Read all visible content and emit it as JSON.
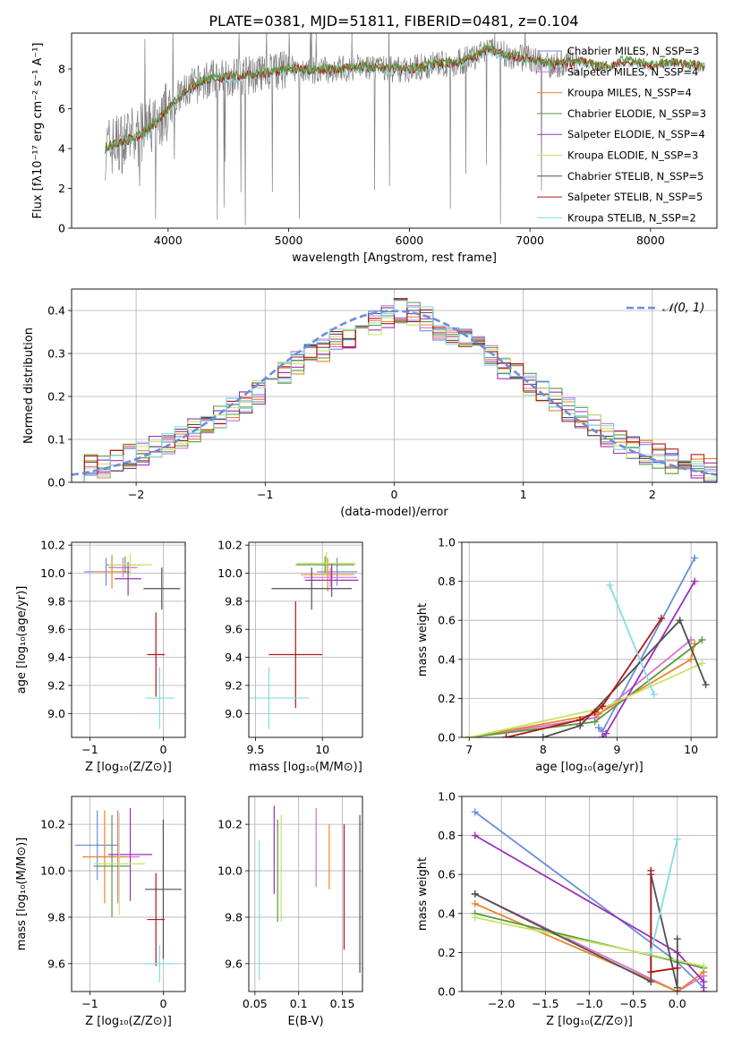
{
  "title": "PLATE=0381, MJD=51811, FIBERID=0481, z=0.104",
  "colors": [
    "#6a8fd8",
    "#d96fd0",
    "#e8862c",
    "#5b9a3c",
    "#9b30b8",
    "#c8e36a",
    "#505050",
    "#b01818",
    "#86dbe0"
  ],
  "chart_data": [
    {
      "id": "spectrum",
      "type": "line",
      "title": "PLATE=0381, MJD=51811, FIBERID=0481, z=0.104",
      "xlabel": "wavelength [Angstrom, rest frame]",
      "ylabel": "Flux [fλ10⁻¹⁷ erg cm⁻² s⁻¹ A⁻¹]",
      "xlim": [
        3200,
        8550
      ],
      "ylim": [
        0,
        9.8
      ],
      "xticks": [
        4000,
        5000,
        6000,
        7000,
        8000
      ],
      "yticks": [
        0,
        2,
        4,
        6,
        8
      ],
      "grid": false,
      "legend_position": "top-right",
      "legend": [
        "Chabrier MILES, N_SSP=3",
        "Salpeter MILES, N_SSP=4",
        "Kroupa MILES, N_SSP=4",
        "Chabrier ELODIE, N_SSP=3",
        "Salpeter ELODIE, N_SSP=4",
        "Kroupa ELODIE, N_SSP=3",
        "Chabrier STELIB, N_SSP=5",
        "Salpeter STELIB, N_SSP=5",
        "Kroupa STELIB, N_SSP=2"
      ],
      "continuum": {
        "x": [
          3480,
          3550,
          3650,
          3750,
          3850,
          3950,
          4050,
          4150,
          4300,
          4500,
          4700,
          4850,
          5000,
          5200,
          5400,
          5600,
          5800,
          6000,
          6200,
          6400,
          6550,
          6650,
          6800,
          7000,
          7200,
          7400,
          7600,
          7800,
          8000,
          8200,
          8350,
          8450
        ],
        "y": [
          4.0,
          4.2,
          4.4,
          4.6,
          5.0,
          5.6,
          6.3,
          6.9,
          7.4,
          7.6,
          7.7,
          7.8,
          8.0,
          7.9,
          8.0,
          8.1,
          8.0,
          8.0,
          8.2,
          8.3,
          8.6,
          9.0,
          8.7,
          8.5,
          8.2,
          8.4,
          8.1,
          8.4,
          8.2,
          8.3,
          8.2,
          8.1
        ]
      }
    },
    {
      "id": "residuals",
      "type": "bar",
      "xlabel": "(data-model)/error",
      "ylabel": "Normed distribution",
      "xlim": [
        -2.5,
        2.5
      ],
      "ylim": [
        0,
        0.45
      ],
      "xticks": [
        -2,
        -1,
        0,
        1,
        2
      ],
      "yticks": [
        0.0,
        0.1,
        0.2,
        0.3,
        0.4
      ],
      "grid": true,
      "legend_position": "top-right",
      "legend": [
        "𝒩(0, 1)"
      ],
      "bin_width": 0.1,
      "bin_start": -2.5,
      "values": [
        0.03,
        0.035,
        0.04,
        0.05,
        0.06,
        0.07,
        0.08,
        0.09,
        0.1,
        0.12,
        0.13,
        0.15,
        0.17,
        0.19,
        0.21,
        0.24,
        0.26,
        0.28,
        0.3,
        0.31,
        0.33,
        0.34,
        0.36,
        0.37,
        0.39,
        0.4,
        0.39,
        0.38,
        0.36,
        0.34,
        0.33,
        0.31,
        0.29,
        0.27,
        0.25,
        0.23,
        0.21,
        0.19,
        0.17,
        0.15,
        0.13,
        0.11,
        0.09,
        0.08,
        0.07,
        0.06,
        0.05,
        0.04,
        0.035,
        0.03
      ]
    },
    {
      "id": "age_vs_Z",
      "type": "scatter",
      "xlabel": "Z [log₁₀(Z/Z⊙)]",
      "ylabel": "age  [log₁₀(age/yr)]",
      "xlim": [
        -1.25,
        0.3
      ],
      "ylim": [
        8.83,
        10.22
      ],
      "xticks": [
        -1,
        0
      ],
      "yticks": [
        9.0,
        9.2,
        9.4,
        9.6,
        9.8,
        10.0,
        10.2
      ],
      "grid": true,
      "points": [
        {
          "x": -0.78,
          "y": 10.01,
          "xerr": 0.3,
          "yerr": 0.1
        },
        {
          "x": -0.55,
          "y": 10.04,
          "xerr": 0.2,
          "yerr": 0.07
        },
        {
          "x": -0.7,
          "y": 10.01,
          "xerr": 0.25,
          "yerr": 0.12
        },
        {
          "x": -0.52,
          "y": 10.06,
          "xerr": 0.25,
          "yerr": 0.06
        },
        {
          "x": -0.48,
          "y": 9.96,
          "xerr": 0.18,
          "yerr": 0.12
        },
        {
          "x": -0.45,
          "y": 10.06,
          "xerr": 0.3,
          "yerr": 0.08
        },
        {
          "x": -0.02,
          "y": 9.89,
          "xerr": 0.25,
          "yerr": 0.15
        },
        {
          "x": -0.1,
          "y": 9.42,
          "xerr": 0.12,
          "yerr": 0.3
        },
        {
          "x": -0.05,
          "y": 9.11,
          "xerr": 0.2,
          "yerr": 0.22
        }
      ]
    },
    {
      "id": "age_vs_mass",
      "type": "scatter",
      "xlabel": "mass [log₁₀(M/M⊙)]",
      "ylabel": "",
      "xlim": [
        9.45,
        10.3
      ],
      "ylim": [
        8.83,
        10.22
      ],
      "xticks": [
        9.5,
        10.0
      ],
      "yticks": [
        9.0,
        9.2,
        9.4,
        9.6,
        9.8,
        10.0,
        10.2
      ],
      "grid": true,
      "points": [
        {
          "x": 10.11,
          "y": 10.01,
          "xerr": 0.15,
          "yerr": 0.1
        },
        {
          "x": 10.06,
          "y": 9.97,
          "xerr": 0.2,
          "yerr": 0.07
        },
        {
          "x": 10.04,
          "y": 9.99,
          "xerr": 0.2,
          "yerr": 0.12
        },
        {
          "x": 10.02,
          "y": 10.06,
          "xerr": 0.22,
          "yerr": 0.06
        },
        {
          "x": 10.07,
          "y": 9.95,
          "xerr": 0.2,
          "yerr": 0.12
        },
        {
          "x": 10.03,
          "y": 10.07,
          "xerr": 0.22,
          "yerr": 0.08
        },
        {
          "x": 9.92,
          "y": 9.89,
          "xerr": 0.3,
          "yerr": 0.15
        },
        {
          "x": 9.8,
          "y": 9.42,
          "xerr": 0.2,
          "yerr": 0.38
        },
        {
          "x": 9.6,
          "y": 9.11,
          "xerr": 0.3,
          "yerr": 0.22
        }
      ]
    },
    {
      "id": "weight_vs_age",
      "type": "line",
      "xlabel": "age  [log₁₀(age/yr)]",
      "ylabel": "mass weight",
      "xlim": [
        6.9,
        10.35
      ],
      "ylim": [
        0,
        1.0
      ],
      "xticks": [
        7,
        8,
        9,
        10
      ],
      "yticks": [
        0.0,
        0.2,
        0.4,
        0.6,
        0.8,
        1.0
      ],
      "grid": true,
      "series": [
        {
          "x": [
            8.75,
            8.8,
            10.05
          ],
          "y": [
            0.05,
            0.03,
            0.92
          ]
        },
        {
          "x": [
            7.0,
            8.7,
            10.0
          ],
          "y": [
            0.0,
            0.1,
            0.5
          ]
        },
        {
          "x": [
            7.0,
            8.75,
            10.0,
            10.05
          ],
          "y": [
            0.0,
            0.12,
            0.4,
            0.48
          ]
        },
        {
          "x": [
            7.0,
            8.7,
            10.15
          ],
          "y": [
            0.0,
            0.08,
            0.5
          ]
        },
        {
          "x": [
            8.8,
            8.85,
            10.05
          ],
          "y": [
            0.0,
            0.02,
            0.8
          ]
        },
        {
          "x": [
            7.0,
            8.8,
            10.15
          ],
          "y": [
            0.0,
            0.15,
            0.38
          ]
        },
        {
          "x": [
            7.5,
            8.0,
            8.5,
            9.85,
            10.2
          ],
          "y": [
            0.0,
            0.0,
            0.06,
            0.6,
            0.27
          ]
        },
        {
          "x": [
            7.5,
            8.5,
            8.7,
            8.8,
            9.6
          ],
          "y": [
            0.0,
            0.09,
            0.13,
            0.16,
            0.61
          ]
        },
        {
          "x": [
            8.9,
            9.5
          ],
          "y": [
            0.78,
            0.22
          ]
        }
      ]
    },
    {
      "id": "mass_vs_Z",
      "type": "scatter",
      "xlabel": "Z [log₁₀(Z/Z⊙)]",
      "ylabel": "mass [log₁₀(M/M⊙)]",
      "xlim": [
        -1.25,
        0.3
      ],
      "ylim": [
        9.48,
        10.32
      ],
      "xticks": [
        -1,
        0
      ],
      "yticks": [
        9.6,
        9.8,
        10.0,
        10.2
      ],
      "grid": true,
      "points": [
        {
          "x": -0.9,
          "y": 10.11,
          "xerr": 0.3,
          "yerr": 0.15
        },
        {
          "x": -0.62,
          "y": 10.06,
          "xerr": 0.3,
          "yerr": 0.2
        },
        {
          "x": -0.8,
          "y": 10.06,
          "xerr": 0.3,
          "yerr": 0.2
        },
        {
          "x": -0.7,
          "y": 10.02,
          "xerr": 0.25,
          "yerr": 0.22
        },
        {
          "x": -0.45,
          "y": 10.07,
          "xerr": 0.3,
          "yerr": 0.2
        },
        {
          "x": -0.6,
          "y": 10.03,
          "xerr": 0.35,
          "yerr": 0.22
        },
        {
          "x": 0.0,
          "y": 9.92,
          "xerr": 0.25,
          "yerr": 0.3
        },
        {
          "x": -0.1,
          "y": 9.79,
          "xerr": 0.12,
          "yerr": 0.2
        },
        {
          "x": -0.05,
          "y": 9.6,
          "xerr": 0.2,
          "yerr": 0.08
        }
      ]
    },
    {
      "id": "mass_vs_ebv",
      "type": "scatter",
      "xlabel": "E(B-V)",
      "ylabel": "",
      "xlim": [
        0.043,
        0.173
      ],
      "ylim": [
        9.48,
        10.32
      ],
      "xticks": [
        0.05,
        0.1,
        0.15
      ],
      "yticks": [
        9.6,
        9.8,
        10.0,
        10.2
      ],
      "grid": true,
      "points": [
        {
          "x": 0.055,
          "y": 9.83,
          "yerr": 0.3
        },
        {
          "x": 0.072,
          "y": 10.09,
          "yerr": 0.19
        },
        {
          "x": 0.076,
          "y": 10.0,
          "yerr": 0.22
        },
        {
          "x": 0.08,
          "y": 10.01,
          "yerr": 0.23
        },
        {
          "x": 0.12,
          "y": 10.1,
          "yerr": 0.17
        },
        {
          "x": 0.135,
          "y": 10.06,
          "yerr": 0.14
        },
        {
          "x": 0.152,
          "y": 9.93,
          "yerr": 0.27
        },
        {
          "x": 0.17,
          "y": 9.9,
          "yerr": 0.34
        }
      ]
    },
    {
      "id": "weight_vs_Z",
      "type": "line",
      "xlabel": "Z [log₁₀(Z/Z⊙)]",
      "ylabel": "mass weight",
      "xlim": [
        -2.45,
        0.45
      ],
      "ylim": [
        0,
        1.0
      ],
      "xticks": [
        -2.0,
        -1.5,
        -1.0,
        -0.5,
        0.0
      ],
      "yticks": [
        0.0,
        0.2,
        0.4,
        0.6,
        0.8,
        1.0
      ],
      "grid": true,
      "series": [
        {
          "x": [
            -2.3,
            0.0,
            0.3
          ],
          "y": [
            0.92,
            0.15,
            0.02
          ]
        },
        {
          "x": [
            -2.3,
            0.0,
            0.3
          ],
          "y": [
            0.5,
            0.0,
            0.08
          ]
        },
        {
          "x": [
            -2.3,
            0.0,
            0.3
          ],
          "y": [
            0.45,
            0.0,
            0.1
          ]
        },
        {
          "x": [
            -2.3,
            0.3
          ],
          "y": [
            0.4,
            0.12
          ]
        },
        {
          "x": [
            -2.3,
            0.0,
            0.3,
            0.3
          ],
          "y": [
            0.8,
            0.2,
            0.05,
            0.0
          ]
        },
        {
          "x": [
            -2.3,
            0.3
          ],
          "y": [
            0.38,
            0.13
          ]
        },
        {
          "x": [
            -2.3,
            -0.3,
            -0.3,
            0.0,
            0.0
          ],
          "y": [
            0.5,
            0.05,
            0.6,
            0.02,
            0.27
          ]
        },
        {
          "x": [
            -0.3,
            -0.3,
            0.0
          ],
          "y": [
            0.62,
            0.1,
            0.12
          ]
        },
        {
          "x": [
            -0.3,
            0.0
          ],
          "y": [
            0.2,
            0.78
          ]
        }
      ]
    }
  ]
}
